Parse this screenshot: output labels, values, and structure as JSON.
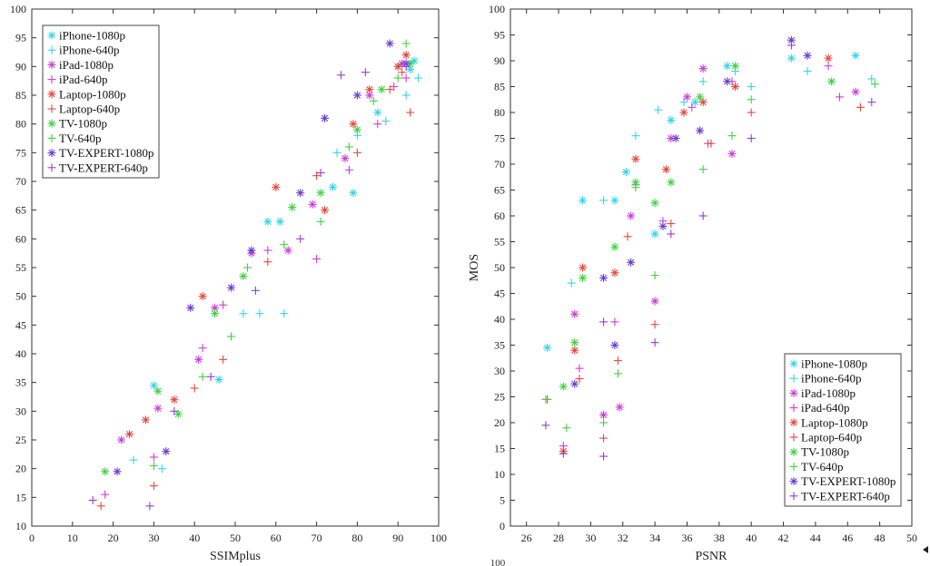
{
  "fragments": {
    "bottom_center": "100"
  },
  "series_styles": [
    {
      "name": "iPhone-1080p",
      "color": "#33d6e8",
      "marker": "star"
    },
    {
      "name": "iPhone-640p",
      "color": "#33d6e8",
      "marker": "plus"
    },
    {
      "name": "iPad-1080p",
      "color": "#cc3ddb",
      "marker": "star"
    },
    {
      "name": "iPad-640p",
      "color": "#cc3ddb",
      "marker": "plus"
    },
    {
      "name": "Laptop-1080p",
      "color": "#e8473a",
      "marker": "star"
    },
    {
      "name": "Laptop-640p",
      "color": "#e8473a",
      "marker": "plus"
    },
    {
      "name": "TV-1080p",
      "color": "#3fd33f",
      "marker": "star"
    },
    {
      "name": "TV-640p",
      "color": "#3fd33f",
      "marker": "plus"
    },
    {
      "name": "TV-EXPERT-1080p",
      "color": "#6a3ad6",
      "marker": "star"
    },
    {
      "name": "TV-EXPERT-640p",
      "color": "#9a3ad6",
      "marker": "plus"
    }
  ],
  "chart_data": [
    {
      "type": "scatter",
      "xlabel": "SSIMplus",
      "ylabel": "MOS",
      "xlim": [
        0,
        100
      ],
      "ylim": [
        10,
        100
      ],
      "xticks": [
        0,
        10,
        20,
        30,
        40,
        50,
        60,
        70,
        80,
        90,
        100
      ],
      "yticks": [
        10,
        15,
        20,
        25,
        30,
        35,
        40,
        45,
        50,
        55,
        60,
        65,
        70,
        75,
        80,
        85,
        90,
        95,
        100
      ],
      "grid": false,
      "legend": "top-left",
      "series": [
        {
          "name": "iPhone-1080p",
          "points": [
            [
              30,
              34.5
            ],
            [
              46,
              35.5
            ],
            [
              58,
              63
            ],
            [
              61,
              63
            ],
            [
              74,
              69
            ],
            [
              79,
              68
            ],
            [
              85,
              82
            ],
            [
              90,
              90
            ],
            [
              93,
              89.5
            ],
            [
              94,
              91
            ]
          ]
        },
        {
          "name": "iPhone-640p",
          "points": [
            [
              25,
              21.5
            ],
            [
              32,
              20
            ],
            [
              52,
              47
            ],
            [
              56,
              47
            ],
            [
              62,
              47
            ],
            [
              75,
              75
            ],
            [
              80,
              78
            ],
            [
              87,
              80.5
            ],
            [
              92,
              85
            ],
            [
              95,
              88
            ]
          ]
        },
        {
          "name": "iPad-1080p",
          "points": [
            [
              22,
              25
            ],
            [
              31,
              30.5
            ],
            [
              41,
              39
            ],
            [
              45,
              48
            ],
            [
              54,
              57.5
            ],
            [
              63,
              58
            ],
            [
              69,
              66
            ],
            [
              77,
              74
            ],
            [
              83,
              85
            ],
            [
              91,
              90.5
            ]
          ]
        },
        {
          "name": "iPad-640p",
          "points": [
            [
              18,
              15.5
            ],
            [
              30,
              22
            ],
            [
              42,
              41
            ],
            [
              47,
              48.5
            ],
            [
              58,
              58
            ],
            [
              70,
              56.5
            ],
            [
              78,
              72
            ],
            [
              85,
              80
            ],
            [
              89,
              86.5
            ],
            [
              92,
              88
            ]
          ]
        },
        {
          "name": "Laptop-1080p",
          "points": [
            [
              24,
              26
            ],
            [
              28,
              28.5
            ],
            [
              35,
              32
            ],
            [
              42,
              50
            ],
            [
              60,
              69
            ],
            [
              72,
              65
            ],
            [
              79,
              80
            ],
            [
              83,
              86
            ],
            [
              90,
              90
            ],
            [
              92,
              92
            ]
          ]
        },
        {
          "name": "Laptop-640p",
          "points": [
            [
              17,
              13.5
            ],
            [
              30,
              17
            ],
            [
              40,
              34
            ],
            [
              47,
              39
            ],
            [
              58,
              56
            ],
            [
              70,
              71
            ],
            [
              80,
              75
            ],
            [
              88,
              86
            ],
            [
              91,
              89
            ],
            [
              93,
              82
            ]
          ]
        },
        {
          "name": "TV-1080p",
          "points": [
            [
              18,
              19.5
            ],
            [
              31,
              33.5
            ],
            [
              36,
              29.5
            ],
            [
              45,
              47
            ],
            [
              52,
              53.5
            ],
            [
              64,
              65.5
            ],
            [
              71,
              68
            ],
            [
              80,
              79
            ],
            [
              86,
              86
            ],
            [
              93,
              90.5
            ]
          ]
        },
        {
          "name": "TV-640p",
          "points": [
            [
              30,
              20.5
            ],
            [
              42,
              36
            ],
            [
              49,
              43
            ],
            [
              53,
              55
            ],
            [
              62,
              59
            ],
            [
              71,
              63
            ],
            [
              78,
              76
            ],
            [
              84,
              84
            ],
            [
              90,
              88
            ],
            [
              92,
              94
            ]
          ]
        },
        {
          "name": "TV-EXPERT-1080p",
          "points": [
            [
              21,
              19.5
            ],
            [
              33,
              23
            ],
            [
              39,
              48
            ],
            [
              49,
              51.5
            ],
            [
              54,
              58
            ],
            [
              66,
              68
            ],
            [
              72,
              81
            ],
            [
              80,
              85
            ],
            [
              88,
              94
            ],
            [
              92,
              90.5
            ]
          ]
        },
        {
          "name": "TV-EXPERT-640p",
          "points": [
            [
              15,
              14.5
            ],
            [
              29,
              13.5
            ],
            [
              35,
              30
            ],
            [
              44,
              36
            ],
            [
              55,
              51
            ],
            [
              66,
              60
            ],
            [
              71,
              71.5
            ],
            [
              76,
              88.5
            ],
            [
              82,
              89
            ],
            [
              92,
              90
            ]
          ]
        }
      ]
    },
    {
      "type": "scatter",
      "xlabel": "PSNR",
      "ylabel": "MOS",
      "xlim": [
        25,
        50
      ],
      "ylim": [
        0,
        100
      ],
      "xticks": [
        26,
        28,
        30,
        32,
        34,
        36,
        38,
        40,
        42,
        44,
        46,
        48,
        50
      ],
      "yticks": [
        0,
        5,
        10,
        15,
        20,
        25,
        30,
        35,
        40,
        45,
        50,
        55,
        60,
        65,
        70,
        75,
        80,
        85,
        90,
        95,
        100
      ],
      "grid": false,
      "legend": "bottom-right",
      "series": [
        {
          "name": "iPhone-1080p",
          "points": [
            [
              27.3,
              34.5
            ],
            [
              29.5,
              63
            ],
            [
              31.5,
              63
            ],
            [
              32.2,
              68.5
            ],
            [
              34.0,
              56.5
            ],
            [
              35.0,
              78.5
            ],
            [
              36.5,
              82
            ],
            [
              38.5,
              89
            ],
            [
              42.5,
              90.5
            ],
            [
              46.5,
              91
            ]
          ]
        },
        {
          "name": "iPhone-640p",
          "points": [
            [
              28.8,
              47
            ],
            [
              30.8,
              63
            ],
            [
              32.8,
              75.5
            ],
            [
              34.2,
              80.5
            ],
            [
              35.8,
              82
            ],
            [
              37.0,
              86
            ],
            [
              39.0,
              88
            ],
            [
              40.0,
              85
            ],
            [
              43.5,
              88
            ],
            [
              47.5,
              86.5
            ]
          ]
        },
        {
          "name": "iPad-1080p",
          "points": [
            [
              29.0,
              41
            ],
            [
              30.8,
              21.5
            ],
            [
              31.8,
              23
            ],
            [
              32.5,
              60
            ],
            [
              34.0,
              43.5
            ],
            [
              35.0,
              75
            ],
            [
              36.0,
              83
            ],
            [
              37.0,
              88.5
            ],
            [
              38.8,
              72
            ],
            [
              46.5,
              84
            ]
          ]
        },
        {
          "name": "iPad-640p",
          "points": [
            [
              28.3,
              15.5
            ],
            [
              29.3,
              30.5
            ],
            [
              31.5,
              39.5
            ],
            [
              32.8,
              66
            ],
            [
              34.5,
              59
            ],
            [
              36.3,
              81
            ],
            [
              37.3,
              74
            ],
            [
              38.8,
              86
            ],
            [
              44.8,
              89
            ],
            [
              45.5,
              83
            ]
          ]
        },
        {
          "name": "Laptop-1080p",
          "points": [
            [
              28.3,
              14.5
            ],
            [
              29.0,
              34
            ],
            [
              29.5,
              50
            ],
            [
              31.5,
              49
            ],
            [
              32.8,
              71
            ],
            [
              34.7,
              69
            ],
            [
              35.8,
              80
            ],
            [
              37.0,
              82
            ],
            [
              39.0,
              85
            ],
            [
              44.8,
              90.5
            ]
          ]
        },
        {
          "name": "Laptop-640p",
          "points": [
            [
              27.3,
              24.5
            ],
            [
              29.3,
              28.5
            ],
            [
              30.8,
              17
            ],
            [
              31.7,
              32
            ],
            [
              32.3,
              56
            ],
            [
              34.0,
              39
            ],
            [
              35.0,
              58.5
            ],
            [
              37.5,
              74
            ],
            [
              40.0,
              80
            ],
            [
              46.8,
              81
            ]
          ]
        },
        {
          "name": "TV-1080p",
          "points": [
            [
              28.3,
              27
            ],
            [
              29.0,
              35.5
            ],
            [
              29.5,
              48
            ],
            [
              31.5,
              54
            ],
            [
              32.8,
              66.5
            ],
            [
              34.0,
              62.5
            ],
            [
              35.0,
              66.5
            ],
            [
              36.8,
              83
            ],
            [
              39.0,
              89
            ],
            [
              45.0,
              86
            ]
          ]
        },
        {
          "name": "TV-640p",
          "points": [
            [
              27.2,
              24.5
            ],
            [
              28.5,
              19
            ],
            [
              30.8,
              20
            ],
            [
              31.7,
              29.5
            ],
            [
              32.8,
              65.5
            ],
            [
              34.0,
              48.5
            ],
            [
              37.0,
              69
            ],
            [
              38.8,
              75.5
            ],
            [
              40.0,
              82.5
            ],
            [
              47.7,
              85.5
            ]
          ]
        },
        {
          "name": "TV-EXPERT-1080p",
          "points": [
            [
              29.0,
              27.5
            ],
            [
              30.8,
              48
            ],
            [
              31.5,
              35
            ],
            [
              32.5,
              51
            ],
            [
              34.5,
              58
            ],
            [
              35.3,
              75
            ],
            [
              36.8,
              76.5
            ],
            [
              38.5,
              86
            ],
            [
              42.5,
              94
            ],
            [
              43.5,
              91
            ]
          ]
        },
        {
          "name": "TV-EXPERT-640p",
          "points": [
            [
              27.2,
              19.5
            ],
            [
              28.3,
              14
            ],
            [
              30.8,
              13.5
            ],
            [
              30.8,
              39.5
            ],
            [
              34.0,
              35.5
            ],
            [
              35.0,
              56.5
            ],
            [
              37.0,
              60
            ],
            [
              40.0,
              75
            ],
            [
              42.5,
              93
            ],
            [
              47.5,
              82
            ]
          ]
        }
      ]
    }
  ]
}
